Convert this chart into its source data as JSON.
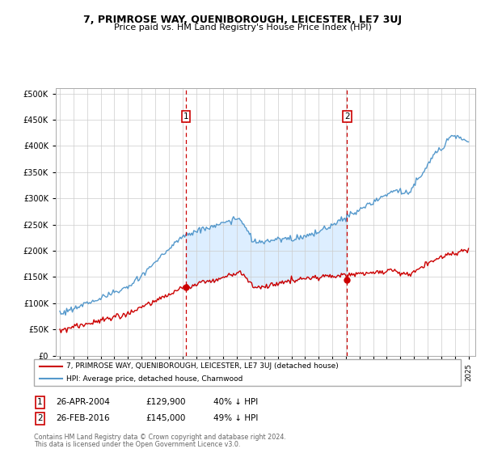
{
  "title": "7, PRIMROSE WAY, QUENIBOROUGH, LEICESTER, LE7 3UJ",
  "subtitle": "Price paid vs. HM Land Registry's House Price Index (HPI)",
  "legend_line1": "7, PRIMROSE WAY, QUENIBOROUGH, LEICESTER, LE7 3UJ (detached house)",
  "legend_line2": "HPI: Average price, detached house, Charnwood",
  "annotation1": {
    "label": "1",
    "price": 129900,
    "date_str": "26-APR-2004",
    "hpi_pct": "40% ↓ HPI"
  },
  "annotation2": {
    "label": "2",
    "price": 145000,
    "date_str": "26-FEB-2016",
    "hpi_pct": "49% ↓ HPI"
  },
  "footer1": "Contains HM Land Registry data © Crown copyright and database right 2024.",
  "footer2": "This data is licensed under the Open Government Licence v3.0.",
  "red_color": "#cc0000",
  "blue_color": "#5599cc",
  "fill_color": "#ddeeff",
  "idx1": 111,
  "idx2": 253,
  "n_months": 361,
  "start_year": 1995.0,
  "ylim": [
    0,
    510000
  ],
  "yticks": [
    0,
    50000,
    100000,
    150000,
    200000,
    250000,
    300000,
    350000,
    400000,
    450000,
    500000
  ],
  "xlim_start": 1994.7,
  "xlim_end": 2025.5
}
